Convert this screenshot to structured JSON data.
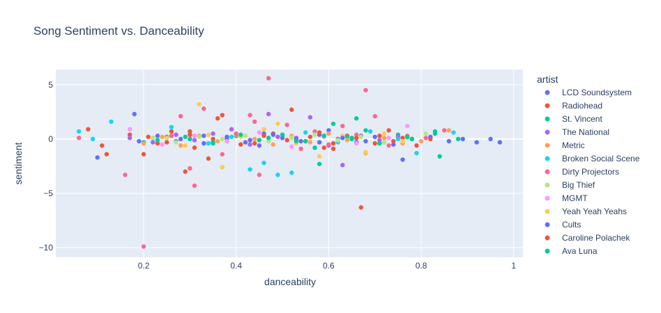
{
  "chart_data": {
    "type": "scatter",
    "title": "Song Sentiment vs. Danceability",
    "xlabel": "danceability",
    "ylabel": "sentiment",
    "xlim": [
      0.01,
      1.02
    ],
    "ylim": [
      -10.9,
      6.4
    ],
    "xticks": [
      0.2,
      0.4,
      0.6,
      0.8,
      1
    ],
    "xtick_labels": [
      "0.2",
      "0.4",
      "0.6",
      "0.8",
      "1"
    ],
    "yticks": [
      5,
      0,
      -5,
      -10
    ],
    "ytick_labels": [
      "5",
      "0",
      "−5",
      "−10"
    ],
    "grid": true,
    "legend_title": "artist",
    "legend_position": "right",
    "series": [
      {
        "name": "LCD Soundsystem",
        "color": "#636efa",
        "x": [
          0.1,
          0.18,
          0.22,
          0.27,
          0.33,
          0.38,
          0.42,
          0.46,
          0.5,
          0.54,
          0.58,
          0.62,
          0.66,
          0.7,
          0.74,
          0.78,
          0.82,
          0.86,
          0.89,
          0.92,
          0.95,
          0.97,
          0.45,
          0.6,
          0.76
        ],
        "y": [
          -1.7,
          2.3,
          0.1,
          -0.2,
          0.3,
          0.0,
          -0.3,
          0.5,
          0.1,
          -0.2,
          0.4,
          0.0,
          -0.3,
          0.2,
          -0.5,
          0.0,
          0.2,
          -0.2,
          0.0,
          -0.3,
          0.0,
          -0.3,
          -0.6,
          0.8,
          -1.9
        ]
      },
      {
        "name": "Radiohead",
        "color": "#EF553B",
        "x": [
          0.08,
          0.11,
          0.12,
          0.17,
          0.2,
          0.23,
          0.26,
          0.29,
          0.3,
          0.31,
          0.34,
          0.37,
          0.4,
          0.44,
          0.48,
          0.52,
          0.55,
          0.58,
          0.61,
          0.64,
          0.67,
          0.7,
          0.73,
          0.76,
          0.79,
          0.82,
          0.36,
          0.59
        ],
        "y": [
          0.9,
          -0.6,
          -1.4,
          0.4,
          -1.4,
          -0.4,
          0.7,
          -3.0,
          0.7,
          -0.8,
          -1.8,
          2.2,
          0.3,
          -0.4,
          0.5,
          2.7,
          -0.2,
          0.6,
          -0.9,
          0.3,
          -6.3,
          -0.4,
          0.8,
          0.1,
          -0.6,
          0.0,
          1.9,
          -0.8
        ]
      },
      {
        "name": "St. Vincent",
        "color": "#00cc96",
        "x": [
          0.2,
          0.25,
          0.3,
          0.35,
          0.4,
          0.45,
          0.5,
          0.55,
          0.58,
          0.61,
          0.64,
          0.66,
          0.68,
          0.72,
          0.75,
          0.78,
          0.83,
          0.84,
          0.88,
          0.57,
          0.65
        ],
        "y": [
          -0.3,
          0.2,
          0.0,
          -0.4,
          0.3,
          -0.1,
          0.4,
          -0.2,
          -2.3,
          1.4,
          0.2,
          1.9,
          0.8,
          -0.3,
          0.4,
          0.0,
          0.7,
          -1.6,
          0.0,
          -0.8,
          0.1
        ]
      },
      {
        "name": "The National",
        "color": "#ab63fa",
        "x": [
          0.17,
          0.22,
          0.27,
          0.31,
          0.35,
          0.39,
          0.43,
          0.47,
          0.49,
          0.53,
          0.56,
          0.6,
          0.63,
          0.67,
          0.71,
          0.75
        ],
        "y": [
          0.1,
          -0.3,
          0.4,
          -0.1,
          0.5,
          0.9,
          -0.5,
          2.3,
          0.2,
          0.1,
          2.0,
          -0.6,
          -2.4,
          0.3,
          -0.1,
          0.2
        ]
      },
      {
        "name": "Metric",
        "color": "#FFA15A",
        "x": [
          0.2,
          0.24,
          0.28,
          0.32,
          0.36,
          0.4,
          0.44,
          0.48,
          0.52,
          0.56,
          0.6,
          0.64,
          0.68,
          0.72,
          0.76,
          0.8,
          0.86
        ],
        "y": [
          -0.4,
          0.2,
          -0.6,
          0.3,
          -0.2,
          0.4,
          0.0,
          -0.5,
          0.3,
          -0.3,
          0.5,
          -0.1,
          -1.3,
          0.1,
          -0.4,
          -0.2,
          0.8
        ]
      },
      {
        "name": "Broken Social Scene",
        "color": "#19d3f3",
        "x": [
          0.06,
          0.09,
          0.13,
          0.26,
          0.3,
          0.34,
          0.39,
          0.43,
          0.46,
          0.49,
          0.52,
          0.55,
          0.62,
          0.69,
          0.75,
          0.79,
          0.87
        ],
        "y": [
          0.7,
          0.0,
          1.6,
          1.1,
          0.4,
          -0.4,
          0.2,
          -2.8,
          -2.2,
          -3.3,
          -3.1,
          0.6,
          -0.3,
          0.7,
          0.0,
          -1.3,
          0.6
        ]
      },
      {
        "name": "Dirty Projectors",
        "color": "#FF6692",
        "x": [
          0.06,
          0.16,
          0.2,
          0.26,
          0.28,
          0.3,
          0.31,
          0.33,
          0.37,
          0.4,
          0.43,
          0.45,
          0.47,
          0.51,
          0.54,
          0.57,
          0.6,
          0.63,
          0.66,
          0.68,
          0.7,
          0.73,
          0.77,
          0.81,
          0.85,
          0.44,
          0.53
        ],
        "y": [
          0.1,
          -3.3,
          -9.9,
          0.3,
          2.1,
          -2.7,
          -4.3,
          2.8,
          -1.4,
          0.5,
          2.2,
          -3.3,
          5.6,
          1.3,
          -0.9,
          0.7,
          -0.5,
          1.2,
          0.4,
          4.5,
          2.1,
          -0.6,
          0.3,
          0.1,
          0.8,
          1.6,
          -0.2
        ]
      },
      {
        "name": "Big Thief",
        "color": "#B6E880",
        "x": [
          0.22,
          0.27,
          0.32,
          0.37,
          0.42,
          0.47,
          0.52,
          0.57,
          0.62,
          0.67,
          0.72,
          0.77,
          0.81
        ],
        "y": [
          0.1,
          -0.3,
          0.2,
          0.0,
          0.3,
          -0.2,
          0.1,
          0.4,
          -0.1,
          0.2,
          -0.3,
          0.1,
          0.5
        ]
      },
      {
        "name": "MGMT",
        "color": "#FF97FF",
        "x": [
          0.17,
          0.24,
          0.31,
          0.38,
          0.45,
          0.52,
          0.59,
          0.66,
          0.73,
          0.77
        ],
        "y": [
          0.9,
          -0.5,
          0.3,
          -0.2,
          0.6,
          -0.7,
          0.2,
          -0.4,
          0.1,
          1.2
        ]
      },
      {
        "name": "Yeah Yeah Yeahs",
        "color": "#FECB52",
        "x": [
          0.25,
          0.29,
          0.32,
          0.34,
          0.37,
          0.41,
          0.46,
          0.49,
          0.53,
          0.58,
          0.63,
          0.68,
          0.72,
          0.76
        ],
        "y": [
          0.1,
          -0.6,
          3.2,
          0.4,
          -2.6,
          0.2,
          0.9,
          1.4,
          -0.4,
          -1.6,
          0.3,
          -1.2,
          0.5,
          -0.2
        ]
      },
      {
        "name": "Cults",
        "color": "#636efa",
        "x": [
          0.19,
          0.23,
          0.28,
          0.33,
          0.38,
          0.43,
          0.48,
          0.53,
          0.58,
          0.63,
          0.68
        ],
        "y": [
          -0.2,
          0.3,
          0.0,
          -0.4,
          0.2,
          -0.1,
          0.4,
          0.0,
          -0.3,
          0.1,
          -0.2
        ]
      },
      {
        "name": "Caroline Polachek",
        "color": "#EF553B",
        "x": [
          0.21,
          0.25,
          0.3,
          0.35,
          0.41,
          0.46,
          0.51,
          0.56,
          0.61,
          0.66,
          0.71,
          0.74
        ],
        "y": [
          0.2,
          -0.3,
          0.4,
          0.0,
          -0.5,
          0.3,
          -0.1,
          0.2,
          -0.4,
          0.1,
          0.3,
          -0.2
        ]
      },
      {
        "name": "Ava Luna",
        "color": "#00cc96",
        "x": [
          0.23,
          0.29,
          0.35,
          0.41,
          0.47,
          0.53,
          0.59,
          0.65,
          0.71,
          0.77,
          0.83
        ],
        "y": [
          -0.1,
          0.2,
          -0.3,
          0.4,
          0.1,
          -0.2,
          0.3,
          0.0,
          -0.4,
          0.2,
          0.5
        ]
      }
    ]
  }
}
